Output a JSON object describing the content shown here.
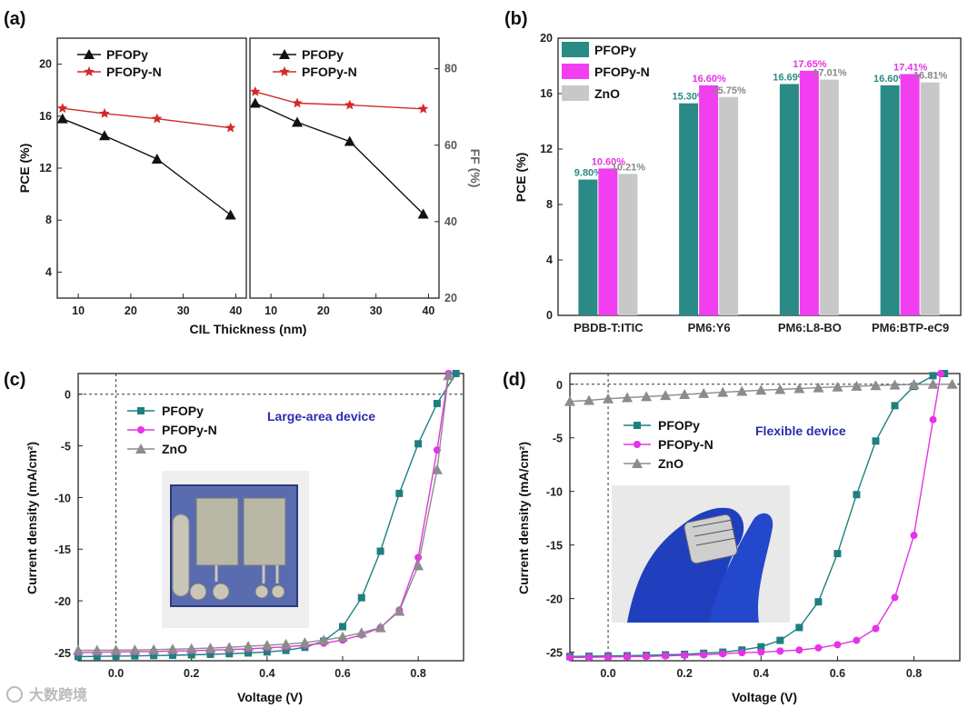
{
  "panels": {
    "a": "(a)",
    "b": "(b)",
    "c": "(c)",
    "d": "(d)"
  },
  "colors": {
    "pfopy": "#1f7f7f",
    "pfopyn": "#e533e5",
    "zno": "#8c8c8c",
    "bar_pfopy": "#2a8a85",
    "bar_pfopyn": "#f13ef1",
    "bar_zno": "#c8c8c8",
    "a_black": "#111111",
    "a_red": "#d22a2a",
    "anno": "#2b2bb0"
  },
  "watermark": "大数跨境",
  "chart_data": [
    {
      "id": "a",
      "type": "line",
      "xlabel": "CIL Thickness (nm)",
      "left": {
        "ylabel": "PCE (%)",
        "ylim": [
          2,
          22
        ],
        "yticks": [
          "4",
          "8",
          "12",
          "16",
          "20"
        ],
        "xlim": [
          6,
          42
        ],
        "xticks": [
          "10",
          "20",
          "30",
          "40"
        ],
        "series": [
          {
            "name": "PFOPy",
            "color": "#111111",
            "marker": "triangle",
            "x": [
              7,
              15,
              25,
              39
            ],
            "y": [
              15.8,
              14.5,
              12.7,
              8.4
            ]
          },
          {
            "name": "PFOPy-N",
            "color": "#d22a2a",
            "marker": "star",
            "x": [
              7,
              15,
              25,
              39
            ],
            "y": [
              16.6,
              16.2,
              15.8,
              15.1
            ]
          }
        ]
      },
      "right": {
        "ylabel": "FF (%)",
        "ylim": [
          20,
          88
        ],
        "yticks": [
          "20",
          "40",
          "60",
          "80"
        ],
        "xlim": [
          6,
          42
        ],
        "xticks": [
          "10",
          "20",
          "30",
          "40"
        ],
        "series": [
          {
            "name": "PFOPy",
            "color": "#111111",
            "marker": "triangle",
            "x": [
              7,
              15,
              25,
              39
            ],
            "y": [
              71,
              66,
              61,
              42
            ]
          },
          {
            "name": "PFOPy-N",
            "color": "#d22a2a",
            "marker": "star",
            "x": [
              7,
              15,
              25,
              39
            ],
            "y": [
              74,
              71,
              70.5,
              69.5
            ]
          }
        ]
      }
    },
    {
      "id": "b",
      "type": "bar",
      "ylabel": "PCE (%)",
      "ylim": [
        0,
        20
      ],
      "yticks": [
        "0",
        "4",
        "8",
        "12",
        "16",
        "20"
      ],
      "categories": [
        "PBDB-T:ITIC",
        "PM6:Y6",
        "PM6:L8-BO",
        "PM6:BTP-eC9"
      ],
      "series": [
        {
          "name": "PFOPy",
          "values": [
            9.8,
            15.3,
            16.69,
            16.6
          ],
          "labels": [
            "9.80%",
            "15.30%",
            "16.69%",
            "16.60%"
          ]
        },
        {
          "name": "PFOPy-N",
          "values": [
            10.6,
            16.6,
            17.65,
            17.41
          ],
          "labels": [
            "10.60%",
            "16.60%",
            "17.65%",
            "17.41%"
          ]
        },
        {
          "name": "ZnO",
          "values": [
            10.21,
            15.75,
            17.01,
            16.81
          ],
          "labels": [
            "10.21%",
            "15.75%",
            "17.01%",
            "16.81%"
          ]
        }
      ]
    },
    {
      "id": "c",
      "type": "line",
      "xlabel": "Voltage (V)",
      "ylabel": "Current density (mA/cm²)",
      "xlim": [
        -0.1,
        0.92
      ],
      "ylim": [
        -25.8,
        2
      ],
      "xticks": [
        "0.0",
        "0.2",
        "0.4",
        "0.6",
        "0.8"
      ],
      "yticks": [
        "0",
        "-5",
        "-10",
        "-15",
        "-20",
        "-25"
      ],
      "annotation": "Large-area device",
      "series": [
        {
          "name": "PFOPy",
          "color": "#1f7f7f",
          "marker": "square",
          "x": [
            -0.1,
            -0.05,
            0,
            0.05,
            0.1,
            0.15,
            0.2,
            0.25,
            0.3,
            0.35,
            0.4,
            0.45,
            0.5,
            0.55,
            0.6,
            0.65,
            0.7,
            0.75,
            0.8,
            0.85,
            0.9
          ],
          "y": [
            -25.4,
            -25.38,
            -25.35,
            -25.33,
            -25.3,
            -25.27,
            -25.23,
            -25.18,
            -25.12,
            -25.05,
            -24.95,
            -24.8,
            -24.5,
            -23.9,
            -22.5,
            -19.7,
            -15.2,
            -9.6,
            -4.8,
            -0.9,
            2.0
          ]
        },
        {
          "name": "PFOPy-N",
          "color": "#e533e5",
          "marker": "circle",
          "x": [
            -0.1,
            -0.05,
            0,
            0.05,
            0.1,
            0.15,
            0.2,
            0.25,
            0.3,
            0.35,
            0.4,
            0.45,
            0.5,
            0.55,
            0.6,
            0.65,
            0.7,
            0.75,
            0.8,
            0.85,
            0.88
          ],
          "y": [
            -25.0,
            -24.98,
            -24.95,
            -24.92,
            -24.9,
            -24.86,
            -24.82,
            -24.77,
            -24.72,
            -24.65,
            -24.55,
            -24.45,
            -24.3,
            -24.1,
            -23.8,
            -23.3,
            -22.6,
            -20.9,
            -15.8,
            -5.4,
            2.0
          ]
        },
        {
          "name": "ZnO",
          "color": "#8c8c8c",
          "marker": "triangle",
          "x": [
            -0.1,
            -0.05,
            0,
            0.05,
            0.1,
            0.15,
            0.2,
            0.25,
            0.3,
            0.35,
            0.4,
            0.45,
            0.5,
            0.55,
            0.6,
            0.65,
            0.7,
            0.75,
            0.8,
            0.85,
            0.88
          ],
          "y": [
            -24.8,
            -24.79,
            -24.77,
            -24.75,
            -24.72,
            -24.68,
            -24.63,
            -24.58,
            -24.5,
            -24.4,
            -24.3,
            -24.2,
            -24.05,
            -23.8,
            -23.5,
            -23.1,
            -22.6,
            -21.0,
            -16.6,
            -7.3,
            1.8
          ]
        }
      ]
    },
    {
      "id": "d",
      "type": "line",
      "xlabel": "Voltage (V)",
      "ylabel": "Current density (mA/cm²)",
      "xlim": [
        -0.1,
        0.92
      ],
      "ylim": [
        -25.8,
        1
      ],
      "xticks": [
        "0.0",
        "0.2",
        "0.4",
        "0.6",
        "0.8"
      ],
      "yticks": [
        "0",
        "-5",
        "-10",
        "-15",
        "-20",
        "-25"
      ],
      "annotation": "Flexible device",
      "series": [
        {
          "name": "PFOPy",
          "color": "#1f7f7f",
          "marker": "square",
          "x": [
            -0.1,
            -0.05,
            0,
            0.05,
            0.1,
            0.15,
            0.2,
            0.25,
            0.3,
            0.35,
            0.4,
            0.45,
            0.5,
            0.55,
            0.6,
            0.65,
            0.7,
            0.75,
            0.8,
            0.85,
            0.88
          ],
          "y": [
            -25.4,
            -25.38,
            -25.35,
            -25.33,
            -25.3,
            -25.25,
            -25.2,
            -25.1,
            -25.0,
            -24.8,
            -24.5,
            -23.9,
            -22.7,
            -20.3,
            -15.8,
            -10.3,
            -5.3,
            -2.0,
            -0.2,
            0.8,
            1.0
          ]
        },
        {
          "name": "PFOPy-N",
          "color": "#e533e5",
          "marker": "circle",
          "x": [
            -0.1,
            -0.05,
            0,
            0.05,
            0.1,
            0.15,
            0.2,
            0.25,
            0.3,
            0.35,
            0.4,
            0.45,
            0.5,
            0.55,
            0.6,
            0.65,
            0.7,
            0.75,
            0.8,
            0.85,
            0.87
          ],
          "y": [
            -25.5,
            -25.48,
            -25.45,
            -25.42,
            -25.4,
            -25.35,
            -25.3,
            -25.25,
            -25.15,
            -25.05,
            -25.0,
            -24.9,
            -24.8,
            -24.6,
            -24.3,
            -23.9,
            -22.8,
            -19.9,
            -14.1,
            -3.3,
            1.0
          ]
        },
        {
          "name": "ZnO",
          "color": "#8c8c8c",
          "marker": "triangle",
          "x": [
            -0.1,
            -0.05,
            0,
            0.05,
            0.1,
            0.15,
            0.2,
            0.25,
            0.3,
            0.35,
            0.4,
            0.45,
            0.5,
            0.55,
            0.6,
            0.65,
            0.7,
            0.75,
            0.8,
            0.85,
            0.9
          ],
          "y": [
            -1.6,
            -1.5,
            -1.35,
            -1.25,
            -1.15,
            -1.05,
            -0.95,
            -0.85,
            -0.75,
            -0.65,
            -0.55,
            -0.48,
            -0.4,
            -0.32,
            -0.25,
            -0.18,
            -0.12,
            -0.07,
            -0.02,
            0.0,
            0.0
          ]
        }
      ]
    }
  ]
}
